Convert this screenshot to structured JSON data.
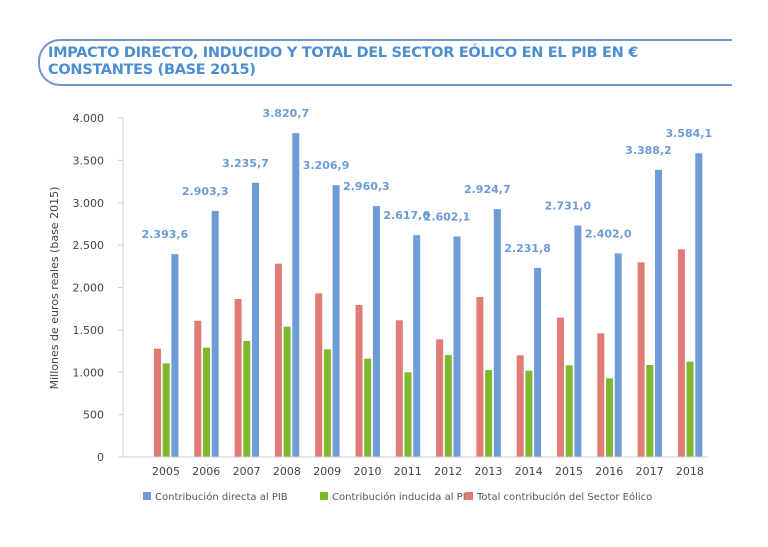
{
  "title_line1": "IMPACTO DIRECTO, INDUCIDO Y TOTAL DEL SECTOR EÓLICO EN EL PIB EN €",
  "title_line2": "CONSTANTES (BASE 2015)",
  "colors": {
    "direct": "#6f9bd6",
    "induced": "#7fb82c",
    "total": "#e07b76",
    "title": "#4b8fd2",
    "frame": "#6f98cf"
  },
  "chart_data": {
    "type": "bar",
    "title": "IMPACTO DIRECTO, INDUCIDO Y TOTAL DEL SECTOR EÓLICO EN EL PIB EN € CONSTANTES (BASE 2015)",
    "xlabel": "",
    "ylabel": "Millones de euros reales (base 2015)",
    "ylim": [
      0,
      4000
    ],
    "yticks": [
      0,
      500,
      1000,
      1500,
      2000,
      2500,
      3000,
      3500,
      4000
    ],
    "ytick_labels": [
      "0",
      "500",
      "1.000",
      "1.500",
      "2.000",
      "2.500",
      "3.000",
      "3.500",
      "4.000"
    ],
    "categories": [
      "2005",
      "2006",
      "2007",
      "2008",
      "2009",
      "2010",
      "2011",
      "2012",
      "2013",
      "2014",
      "2015",
      "2016",
      "2017",
      "2018"
    ],
    "legend_position": "bottom",
    "series": [
      {
        "name": "Total contribución del Sector Eólico",
        "key": "total",
        "values": [
          1278,
          1608,
          1864,
          2281,
          1931,
          1794,
          1613,
          1388,
          1888,
          1200,
          1644,
          1459,
          2297,
          2451
        ]
      },
      {
        "name": "Contribución inducida al PIB",
        "key": "induced",
        "values": [
          1105,
          1290,
          1369,
          1538,
          1270,
          1160,
          999,
          1203,
          1026,
          1018,
          1082,
          928,
          1085,
          1125
        ]
      },
      {
        "name": "Contribución directa al PIB",
        "key": "direct",
        "values": [
          2393.6,
          2903.3,
          3235.7,
          3820.7,
          3206.9,
          2960.3,
          2617.6,
          2602.1,
          2924.7,
          2231.8,
          2731.0,
          2402.0,
          3388.2,
          3584.1
        ],
        "labels": [
          "2.393,6",
          "2.903,3",
          "3.235,7",
          "3.820,7",
          "3.206,9",
          "2.960,3",
          "2.617,6",
          "2.602,1",
          "2.924,7",
          "2.231,8",
          "2.731,0",
          "2.402,0",
          "3.388,2",
          "3.584,1"
        ]
      }
    ],
    "legend": [
      "Contribución directa al PIB",
      "Contribución inducida al PIB",
      "Total contribución del Sector Eólico"
    ]
  }
}
